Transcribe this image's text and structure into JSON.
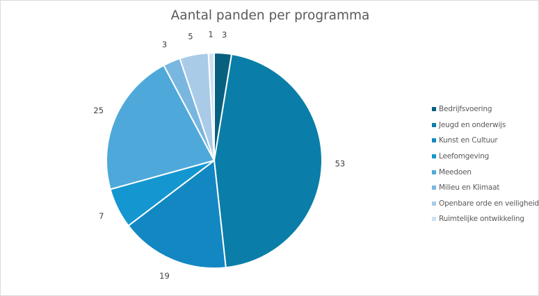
{
  "chart_data": {
    "type": "pie",
    "title": "Aantal panden per programma",
    "categories": [
      "Bedrijfsvoering",
      "Jeugd en onderwijs",
      "Kunst en Cultuur",
      "Leefomgeving",
      "Meedoen",
      "Milieu en Klimaat",
      "Openbare orde en veiligheid",
      "Ruimtelijke ontwikkeling"
    ],
    "values": [
      3,
      53,
      19,
      7,
      25,
      3,
      5,
      1
    ],
    "colors": [
      "#08607f",
      "#0a7ea8",
      "#1387c2",
      "#1497d0",
      "#4ea9da",
      "#7ab7e0",
      "#a9cbe8",
      "#cde0f2"
    ],
    "legend_position": "right",
    "data_labels": "outside-end"
  }
}
